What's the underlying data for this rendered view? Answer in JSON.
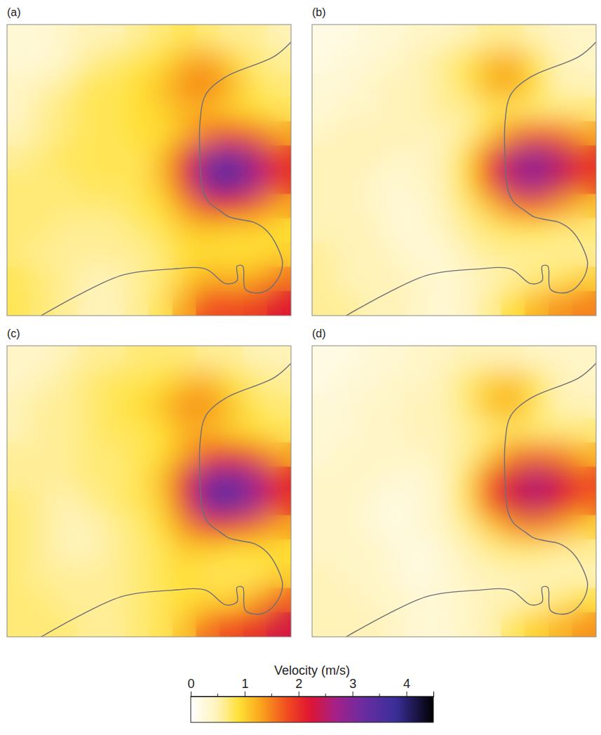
{
  "chart_data": {
    "type": "heatmap",
    "tick_labels": false,
    "panels": [
      {
        "label": "(a)",
        "cells": [
          [
            0.3,
            0.3,
            0.4,
            0.5,
            0.5,
            0.6,
            0.7,
            0.8,
            0.7,
            0.6,
            0.6,
            0.5
          ],
          [
            0.3,
            0.3,
            0.4,
            0.6,
            0.7,
            0.8,
            0.9,
            1.2,
            1.3,
            1.0,
            0.7,
            0.6
          ],
          [
            0.4,
            0.5,
            0.6,
            0.8,
            0.8,
            0.9,
            1.1,
            1.4,
            1.5,
            1.2,
            0.8,
            0.7
          ],
          [
            0.4,
            0.6,
            0.7,
            0.8,
            0.8,
            0.9,
            1.0,
            1.2,
            1.2,
            1.0,
            0.9,
            0.8
          ],
          [
            0.5,
            0.6,
            0.7,
            0.8,
            0.8,
            0.9,
            0.9,
            1.2,
            1.6,
            1.8,
            1.6,
            1.3
          ],
          [
            0.6,
            0.7,
            0.8,
            0.8,
            0.8,
            0.8,
            1.1,
            2.0,
            2.9,
            3.2,
            2.6,
            2.0
          ],
          [
            0.7,
            0.7,
            0.7,
            0.8,
            0.8,
            0.8,
            1.1,
            2.0,
            3.1,
            3.6,
            2.7,
            2.0
          ],
          [
            0.7,
            0.7,
            0.7,
            0.7,
            0.7,
            0.8,
            0.9,
            1.4,
            2.0,
            2.1,
            1.7,
            1.3
          ],
          [
            0.7,
            0.7,
            0.6,
            0.6,
            0.6,
            0.7,
            0.8,
            1.0,
            1.1,
            1.0,
            1.0,
            0.9
          ],
          [
            0.7,
            0.6,
            0.6,
            0.6,
            0.6,
            0.6,
            0.7,
            0.9,
            0.9,
            0.9,
            0.9,
            1.0
          ],
          [
            0.8,
            0.7,
            0.6,
            0.5,
            0.5,
            0.6,
            0.7,
            1.0,
            1.3,
            1.2,
            1.3,
            1.6
          ],
          [
            0.8,
            0.7,
            0.6,
            0.5,
            0.5,
            0.6,
            0.8,
            1.3,
            1.8,
            1.8,
            1.9,
            2.2
          ]
        ]
      },
      {
        "label": "(b)",
        "cells": [
          [
            0.2,
            0.2,
            0.3,
            0.3,
            0.4,
            0.4,
            0.5,
            0.6,
            0.6,
            0.5,
            0.4,
            0.4
          ],
          [
            0.2,
            0.3,
            0.3,
            0.4,
            0.5,
            0.6,
            0.8,
            1.1,
            1.2,
            0.8,
            0.5,
            0.4
          ],
          [
            0.3,
            0.3,
            0.4,
            0.5,
            0.5,
            0.6,
            0.8,
            1.2,
            1.3,
            0.9,
            0.5,
            0.5
          ],
          [
            0.3,
            0.4,
            0.4,
            0.5,
            0.5,
            0.6,
            0.6,
            0.8,
            0.8,
            0.7,
            0.7,
            0.7
          ],
          [
            0.4,
            0.5,
            0.5,
            0.5,
            0.5,
            0.5,
            0.6,
            1.0,
            1.5,
            1.7,
            1.6,
            1.3
          ],
          [
            0.5,
            0.5,
            0.5,
            0.4,
            0.4,
            0.5,
            0.9,
            1.8,
            2.6,
            2.9,
            2.5,
            2.0
          ],
          [
            0.5,
            0.5,
            0.4,
            0.3,
            0.4,
            0.5,
            0.9,
            1.8,
            2.6,
            2.8,
            2.4,
            1.9
          ],
          [
            0.5,
            0.5,
            0.4,
            0.3,
            0.3,
            0.5,
            0.7,
            1.1,
            1.6,
            1.7,
            1.4,
            1.1
          ],
          [
            0.5,
            0.5,
            0.5,
            0.3,
            0.3,
            0.4,
            0.6,
            0.7,
            0.8,
            0.8,
            0.7,
            0.7
          ],
          [
            0.6,
            0.5,
            0.5,
            0.4,
            0.3,
            0.3,
            0.5,
            0.6,
            0.6,
            0.6,
            0.6,
            0.6
          ],
          [
            0.6,
            0.5,
            0.5,
            0.5,
            0.4,
            0.3,
            0.4,
            0.5,
            0.6,
            0.7,
            0.8,
            1.0
          ],
          [
            0.6,
            0.6,
            0.5,
            0.5,
            0.4,
            0.3,
            0.4,
            0.6,
            0.9,
            1.2,
            1.4,
            1.5
          ]
        ]
      },
      {
        "label": "(c)",
        "cells": [
          [
            0.4,
            0.4,
            0.5,
            0.6,
            0.6,
            0.7,
            0.7,
            0.7,
            0.6,
            0.6,
            0.5,
            0.5
          ],
          [
            0.4,
            0.5,
            0.6,
            0.7,
            0.8,
            0.8,
            0.9,
            1.1,
            1.2,
            0.9,
            0.7,
            0.6
          ],
          [
            0.5,
            0.6,
            0.6,
            0.7,
            0.8,
            0.9,
            1.1,
            1.4,
            1.4,
            1.1,
            0.8,
            0.7
          ],
          [
            0.5,
            0.6,
            0.6,
            0.7,
            0.8,
            0.8,
            0.9,
            1.2,
            1.2,
            1.0,
            0.9,
            0.8
          ],
          [
            0.6,
            0.6,
            0.6,
            0.7,
            0.7,
            0.8,
            0.9,
            1.3,
            1.8,
            2.0,
            1.7,
            1.3
          ],
          [
            0.6,
            0.6,
            0.6,
            0.7,
            0.7,
            0.8,
            1.1,
            2.1,
            3.0,
            3.2,
            2.7,
            2.1
          ],
          [
            0.7,
            0.6,
            0.5,
            0.6,
            0.7,
            0.8,
            1.0,
            2.0,
            3.1,
            3.4,
            2.7,
            2.0
          ],
          [
            0.7,
            0.6,
            0.5,
            0.5,
            0.6,
            0.7,
            0.9,
            1.4,
            1.9,
            1.9,
            1.6,
            1.3
          ],
          [
            0.7,
            0.6,
            0.5,
            0.5,
            0.6,
            0.7,
            0.8,
            1.0,
            1.0,
            0.9,
            0.9,
            0.9
          ],
          [
            0.7,
            0.6,
            0.6,
            0.6,
            0.6,
            0.7,
            0.8,
            0.9,
            0.8,
            0.8,
            0.8,
            1.0
          ],
          [
            0.7,
            0.7,
            0.6,
            0.6,
            0.6,
            0.7,
            0.8,
            0.9,
            1.0,
            1.0,
            1.3,
            1.7
          ],
          [
            0.7,
            0.7,
            0.7,
            0.6,
            0.6,
            0.7,
            0.8,
            1.1,
            1.6,
            1.8,
            2.0,
            2.3
          ]
        ]
      },
      {
        "label": "(d)",
        "cells": [
          [
            0.2,
            0.2,
            0.3,
            0.3,
            0.4,
            0.4,
            0.5,
            0.5,
            0.5,
            0.4,
            0.4,
            0.4
          ],
          [
            0.2,
            0.3,
            0.3,
            0.4,
            0.4,
            0.5,
            0.7,
            1.0,
            1.1,
            0.8,
            0.5,
            0.4
          ],
          [
            0.3,
            0.3,
            0.4,
            0.4,
            0.5,
            0.5,
            0.7,
            1.1,
            1.2,
            0.8,
            0.5,
            0.5
          ],
          [
            0.3,
            0.3,
            0.4,
            0.4,
            0.5,
            0.5,
            0.6,
            0.7,
            0.8,
            0.7,
            0.7,
            0.7
          ],
          [
            0.3,
            0.4,
            0.4,
            0.4,
            0.4,
            0.5,
            0.6,
            1.0,
            1.5,
            1.6,
            1.5,
            1.2
          ],
          [
            0.4,
            0.4,
            0.4,
            0.3,
            0.3,
            0.4,
            0.8,
            1.7,
            2.3,
            2.6,
            2.3,
            1.8
          ],
          [
            0.4,
            0.4,
            0.3,
            0.2,
            0.3,
            0.4,
            0.8,
            1.7,
            2.3,
            2.5,
            2.2,
            1.7
          ],
          [
            0.4,
            0.4,
            0.3,
            0.2,
            0.3,
            0.4,
            0.6,
            1.0,
            1.4,
            1.5,
            1.3,
            1.0
          ],
          [
            0.4,
            0.4,
            0.4,
            0.3,
            0.2,
            0.3,
            0.5,
            0.6,
            0.7,
            0.7,
            0.6,
            0.6
          ],
          [
            0.5,
            0.4,
            0.4,
            0.3,
            0.2,
            0.3,
            0.4,
            0.5,
            0.5,
            0.5,
            0.5,
            0.5
          ],
          [
            0.5,
            0.5,
            0.4,
            0.4,
            0.3,
            0.3,
            0.4,
            0.5,
            0.5,
            0.6,
            0.7,
            0.9
          ],
          [
            0.5,
            0.5,
            0.5,
            0.4,
            0.3,
            0.3,
            0.4,
            0.5,
            0.8,
            1.0,
            1.2,
            1.4
          ]
        ]
      }
    ],
    "colorbar": {
      "title": "Velocity (m/s)",
      "range": [
        0,
        4.5
      ],
      "ticks": [
        0,
        1,
        2,
        3,
        4
      ],
      "minor_ticks": [
        0.5,
        1.5,
        2.5,
        3.5
      ]
    }
  }
}
